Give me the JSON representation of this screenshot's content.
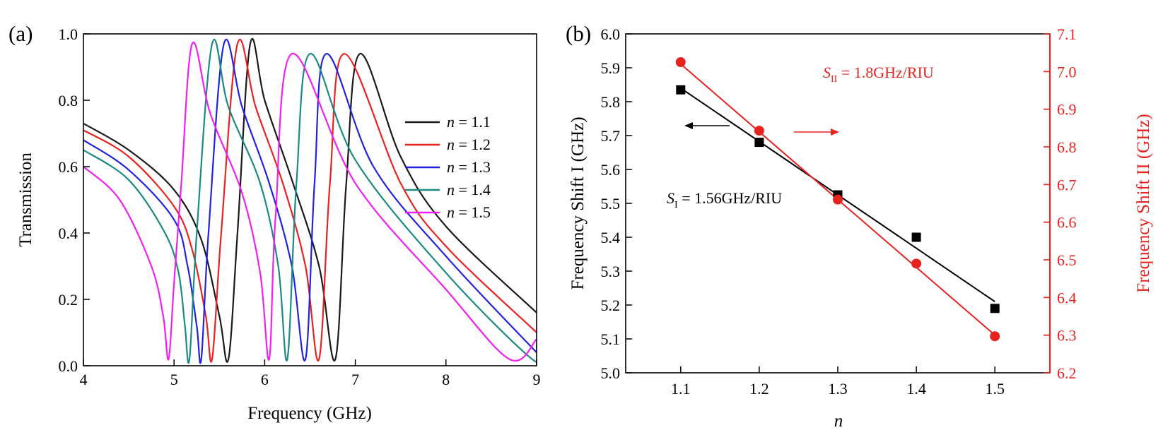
{
  "chart_data": [
    {
      "id": "a",
      "type": "line",
      "panel_label": "(a)",
      "xlabel": "Frequency (GHz)",
      "ylabel": "Transmission",
      "xlim": [
        4,
        9
      ],
      "ylim": [
        0,
        1.0
      ],
      "xticks": [
        "4",
        "5",
        "6",
        "7",
        "8",
        "9"
      ],
      "yticks": [
        "0.0",
        "0.2",
        "0.4",
        "0.6",
        "0.8",
        "1.0"
      ],
      "legend_position": "right",
      "series": [
        {
          "name": "n = 1.1",
          "legend_var": "n",
          "legend_rest": " = 1.1",
          "color": "#1a1a1a",
          "x": [
            4.0,
            4.5,
            5.0,
            5.3,
            5.5,
            5.6,
            5.7,
            5.84,
            6.0,
            6.3,
            6.6,
            6.78,
            6.9,
            7.05,
            7.5,
            8.0,
            9.0
          ],
          "y": [
            0.73,
            0.65,
            0.53,
            0.38,
            0.15,
            0.02,
            0.4,
            0.97,
            0.8,
            0.56,
            0.3,
            0.02,
            0.55,
            0.94,
            0.63,
            0.42,
            0.16
          ]
        },
        {
          "name": "n = 1.2",
          "legend_var": "n",
          "legend_rest": " = 1.2",
          "color": "#e8231f",
          "x": [
            4.0,
            4.5,
            5.0,
            5.2,
            5.35,
            5.42,
            5.52,
            5.7,
            5.9,
            6.2,
            6.45,
            6.6,
            6.72,
            6.88,
            7.5,
            8.0,
            9.0
          ],
          "y": [
            0.71,
            0.63,
            0.48,
            0.35,
            0.15,
            0.02,
            0.4,
            0.97,
            0.78,
            0.55,
            0.3,
            0.02,
            0.55,
            0.94,
            0.55,
            0.36,
            0.1
          ]
        },
        {
          "name": "n = 1.3",
          "legend_var": "n",
          "legend_rest": " = 1.3",
          "color": "#2222e0",
          "x": [
            4.0,
            4.5,
            5.0,
            5.15,
            5.25,
            5.3,
            5.38,
            5.55,
            5.75,
            6.05,
            6.3,
            6.45,
            6.55,
            6.68,
            7.2,
            8.0,
            9.0
          ],
          "y": [
            0.68,
            0.59,
            0.44,
            0.3,
            0.12,
            0.02,
            0.4,
            0.97,
            0.78,
            0.55,
            0.3,
            0.02,
            0.55,
            0.94,
            0.6,
            0.33,
            0.04
          ]
        },
        {
          "name": "n = 1.4",
          "legend_var": "n",
          "legend_rest": " = 1.4",
          "color": "#1a8a82",
          "x": [
            4.0,
            4.5,
            4.9,
            5.05,
            5.12,
            5.17,
            5.25,
            5.42,
            5.6,
            5.95,
            6.15,
            6.25,
            6.35,
            6.5,
            7.0,
            8.0,
            8.95,
            9.0
          ],
          "y": [
            0.65,
            0.56,
            0.4,
            0.28,
            0.12,
            0.02,
            0.4,
            0.97,
            0.78,
            0.55,
            0.3,
            0.02,
            0.55,
            0.94,
            0.62,
            0.28,
            0.02,
            0.06
          ]
        },
        {
          "name": "n = 1.5",
          "legend_var": "n",
          "legend_rest": " = 1.5",
          "color": "#f020f0",
          "x": [
            4.0,
            4.4,
            4.75,
            4.88,
            4.94,
            5.0,
            5.08,
            5.2,
            5.4,
            5.75,
            5.95,
            6.05,
            6.12,
            6.3,
            7.0,
            8.0,
            8.7,
            9.0
          ],
          "y": [
            0.6,
            0.5,
            0.3,
            0.15,
            0.02,
            0.25,
            0.55,
            0.97,
            0.76,
            0.52,
            0.28,
            0.02,
            0.45,
            0.94,
            0.55,
            0.23,
            0.02,
            0.08
          ]
        }
      ]
    },
    {
      "id": "b",
      "type": "scatter",
      "panel_label": "(b)",
      "xlabel": "n",
      "ylabel_left": "Frequency Shift I (GHz)",
      "ylabel_right": "Frequency Shift II (GHz)",
      "xlim": [
        1.03,
        1.57
      ],
      "ylim_left": [
        5.0,
        6.0
      ],
      "ylim_right": [
        6.2,
        7.1
      ],
      "xticks": [
        "1.1",
        "1.2",
        "1.3",
        "1.4",
        "1.5"
      ],
      "yticks_left": [
        "5.0",
        "5.1",
        "5.2",
        "5.3",
        "5.4",
        "5.5",
        "5.6",
        "5.7",
        "5.8",
        "5.9",
        "6.0"
      ],
      "yticks_right": [
        "6.2",
        "6.3",
        "6.4",
        "6.5",
        "6.6",
        "6.7",
        "6.8",
        "6.9",
        "7.0",
        "7.1"
      ],
      "series": [
        {
          "name": "Frequency Shift I",
          "axis": "left",
          "color": "#000000",
          "marker": "square",
          "x": [
            1.1,
            1.2,
            1.3,
            1.4,
            1.5
          ],
          "y": [
            5.835,
            5.68,
            5.525,
            5.4,
            5.19
          ],
          "fit": {
            "x": [
              1.1,
              1.5
            ],
            "y": [
              5.84,
              5.21
            ]
          }
        },
        {
          "name": "Frequency Shift II",
          "axis": "right",
          "color": "#e8231f",
          "marker": "circle",
          "x": [
            1.1,
            1.2,
            1.3,
            1.4,
            1.5
          ],
          "y": [
            7.025,
            6.843,
            6.66,
            6.49,
            6.297
          ],
          "fit": {
            "x": [
              1.1,
              1.5
            ],
            "y": [
              7.02,
              6.3
            ]
          }
        }
      ],
      "annotations": {
        "s1_symbol": "S",
        "s1_sub": "I",
        "s1_value": " = 1.56GHz/RIU",
        "s2_symbol": "S",
        "s2_sub": "II",
        "s2_value": " = 1.8GHz/RIU",
        "left_arrow_color": "#000000",
        "right_arrow_color": "#e8231f"
      }
    }
  ]
}
